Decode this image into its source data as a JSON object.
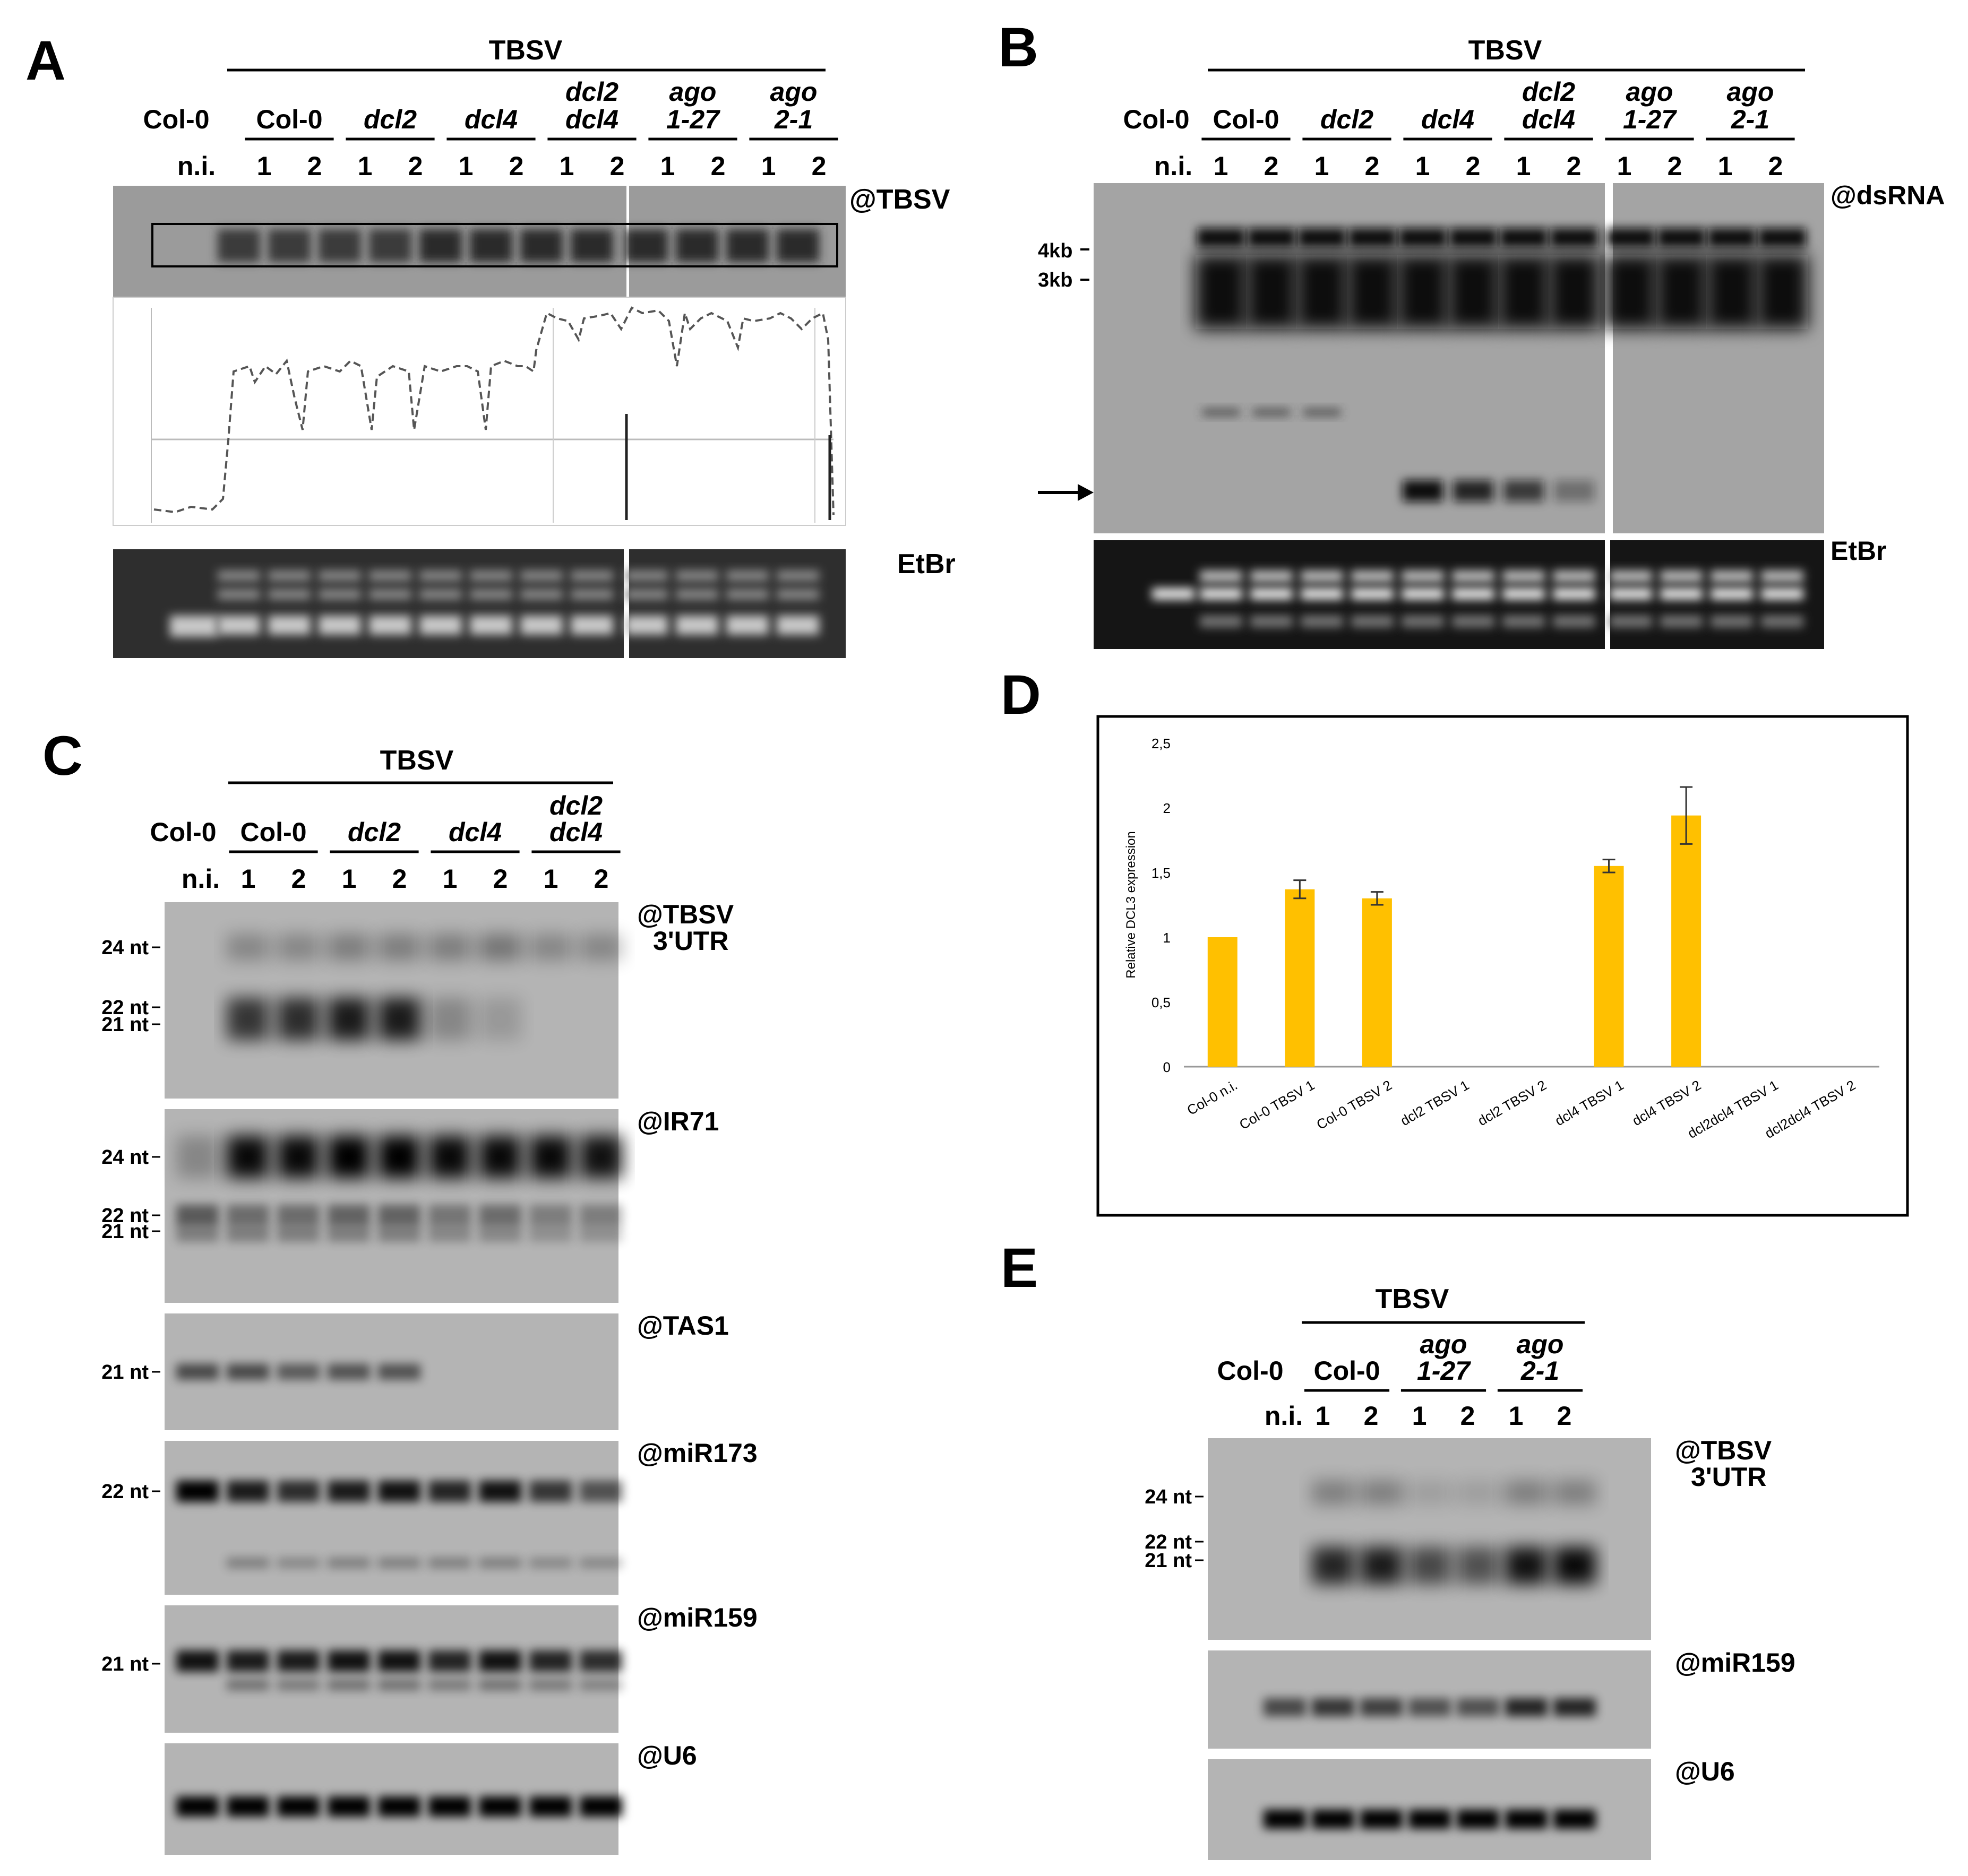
{
  "panelA": {
    "letter": "A",
    "treatment": "TBSV",
    "control_label": "Col-0",
    "ni_label": "n.i.",
    "groups": [
      {
        "top": "",
        "bottom": "Col-0",
        "italic": false
      },
      {
        "top": "",
        "bottom": "dcl2",
        "italic": true
      },
      {
        "top": "",
        "bottom": "dcl4",
        "italic": true
      },
      {
        "top": "dcl2",
        "bottom": "dcl4",
        "italic": true
      },
      {
        "top": "ago",
        "bottom": "1-27",
        "italic": true
      },
      {
        "top": "ago",
        "bottom": "2-1",
        "italic": true
      }
    ],
    "rep_labels": [
      "1",
      "2"
    ],
    "probe_label": "@TBSV",
    "stain_label": "EtBr"
  },
  "panelB": {
    "letter": "B",
    "treatment": "TBSV",
    "control_label": "Col-0",
    "ni_label": "n.i.",
    "groups": [
      {
        "top": "",
        "bottom": "Col-0",
        "italic": false
      },
      {
        "top": "",
        "bottom": "dcl2",
        "italic": true
      },
      {
        "top": "",
        "bottom": "dcl4",
        "italic": true
      },
      {
        "top": "dcl2",
        "bottom": "dcl4",
        "italic": true
      },
      {
        "top": "ago",
        "bottom": "1-27",
        "italic": true
      },
      {
        "top": "ago",
        "bottom": "2-1",
        "italic": true
      }
    ],
    "rep_labels": [
      "1",
      "2"
    ],
    "probe_label": "@dsRNA",
    "size_markers": [
      "4kb",
      "3kb"
    ],
    "stain_label": "EtBr"
  },
  "panelC": {
    "letter": "C",
    "treatment": "TBSV",
    "control_label": "Col-0",
    "ni_label": "n.i.",
    "groups": [
      {
        "top": "",
        "bottom": "Col-0",
        "italic": false
      },
      {
        "top": "",
        "bottom": "dcl2",
        "italic": true
      },
      {
        "top": "",
        "bottom": "dcl4",
        "italic": true
      },
      {
        "top": "dcl2",
        "bottom": "dcl4",
        "italic": true
      }
    ],
    "rep_labels": [
      "1",
      "2"
    ],
    "blots": [
      {
        "probe": "@TBSV",
        "probe2": "3'UTR",
        "markers": [
          "24 nt",
          "22 nt",
          "21 nt"
        ]
      },
      {
        "probe": "@IR71",
        "probe2": "",
        "markers": [
          "24 nt",
          "22 nt",
          "21 nt"
        ]
      },
      {
        "probe": "@TAS1",
        "probe2": "",
        "markers": [
          "21 nt"
        ]
      },
      {
        "probe": "@miR173",
        "probe2": "",
        "markers": [
          "22 nt"
        ]
      },
      {
        "probe": "@miR159",
        "probe2": "",
        "markers": [
          "21 nt"
        ]
      },
      {
        "probe": "@U6",
        "probe2": "",
        "markers": []
      }
    ]
  },
  "panelD": {
    "letter": "D",
    "chart_data": {
      "type": "bar",
      "title": "",
      "xlabel": "",
      "ylabel": "Relative DCL3 expression",
      "ylim": [
        0,
        2.5
      ],
      "yticks": [
        "0",
        "0,5",
        "1",
        "1,5",
        "2",
        "2,5"
      ],
      "categories": [
        "Col-0 n.i.",
        "Col-0 TBSV 1",
        "Col-0 TBSV 2",
        "dcl2 TBSV 1",
        "dcl2 TBSV 2",
        "dcl4 TBSV 1",
        "dcl4 TBSV 2",
        "dcl2dcl4 TBSV 1",
        "dcl2dcl4 TBSV 2"
      ],
      "values": [
        1.0,
        1.37,
        1.3,
        0,
        0,
        1.55,
        1.94,
        0,
        0
      ],
      "errors": [
        0,
        0.07,
        0.05,
        0,
        0,
        0.05,
        0.22,
        0,
        0
      ],
      "bar_color": "#FFC000",
      "grid": false,
      "legend": "none"
    }
  },
  "panelE": {
    "letter": "E",
    "treatment": "TBSV",
    "control_label": "Col-0",
    "ni_label": "n.i.",
    "groups": [
      {
        "top": "",
        "bottom": "Col-0",
        "italic": false
      },
      {
        "top": "ago",
        "bottom": "1-27",
        "italic": true
      },
      {
        "top": "ago",
        "bottom": "2-1",
        "italic": true
      }
    ],
    "rep_labels": [
      "1",
      "2"
    ],
    "blots": [
      {
        "probe": "@TBSV",
        "probe2": "3'UTR",
        "markers": [
          "24 nt",
          "22 nt",
          "21 nt"
        ]
      },
      {
        "probe": "@miR159",
        "probe2": "",
        "markers": []
      },
      {
        "probe": "@U6",
        "probe2": "",
        "markers": []
      }
    ]
  }
}
